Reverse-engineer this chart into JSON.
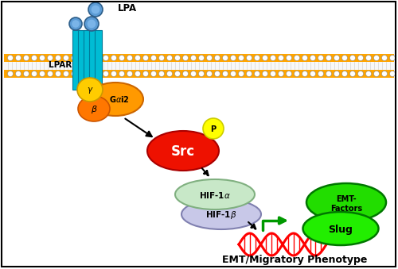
{
  "bg_color": "#ffffff",
  "lpa_label": "LPA",
  "lpar_label": "LPAR",
  "title": "EMT/Migratory Phenotype"
}
